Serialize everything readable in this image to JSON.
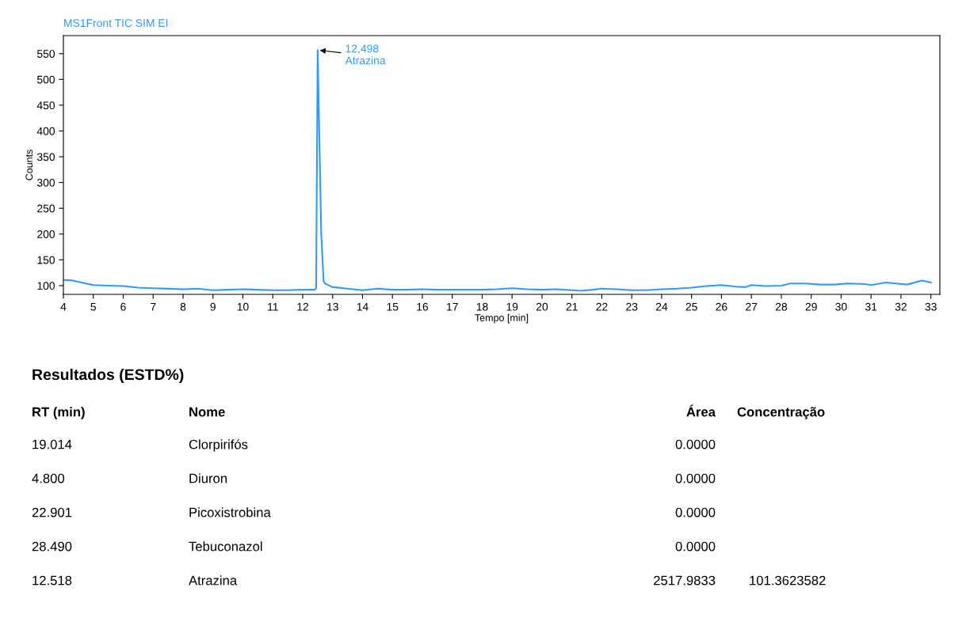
{
  "chart_data": [
    {
      "type": "line",
      "title": "MS1Front TIC SIM EI",
      "xlabel": "Tempo [min]",
      "ylabel": "Counts",
      "x": [
        4.0,
        4.3,
        4.6,
        5.0,
        5.5,
        6.0,
        6.5,
        7.0,
        7.5,
        8.0,
        8.5,
        9.0,
        9.5,
        10.0,
        10.5,
        11.0,
        11.5,
        12.0,
        12.4,
        12.45,
        12.5,
        12.62,
        12.7,
        12.75,
        13.0,
        13.5,
        14.0,
        14.5,
        15.0,
        15.5,
        16.0,
        16.5,
        17.0,
        17.5,
        18.0,
        18.5,
        19.0,
        19.5,
        20.0,
        20.5,
        21.0,
        21.3,
        21.7,
        22.0,
        22.5,
        23.0,
        23.5,
        24.0,
        24.5,
        25.0,
        25.5,
        26.0,
        26.5,
        26.8,
        27.0,
        27.5,
        28.0,
        28.3,
        28.8,
        29.3,
        29.8,
        30.2,
        30.8,
        31.0,
        31.5,
        32.2,
        32.7,
        33.0
      ],
      "series": [
        {
          "color": "#3399ff",
          "values": [
            111,
            110,
            106,
            101,
            100,
            99,
            96,
            95,
            94,
            93,
            94,
            91,
            92,
            93,
            92,
            91,
            91,
            92,
            92,
            95,
            557,
            200,
            108,
            104,
            97,
            94,
            91,
            94,
            92,
            92,
            93,
            92,
            92,
            92,
            92,
            93,
            95,
            93,
            92,
            93,
            91,
            90,
            92,
            94,
            93,
            91,
            91,
            93,
            94,
            96,
            99,
            101,
            98,
            97,
            101,
            99,
            100,
            104,
            104,
            102,
            102,
            104,
            103,
            101,
            106,
            102,
            110,
            106
          ]
        }
      ],
      "xlim": [
        4,
        33.3
      ],
      "xticks": [
        4,
        5,
        6,
        7,
        8,
        9,
        10,
        11,
        12,
        13,
        14,
        15,
        16,
        17,
        18,
        19,
        20,
        21,
        22,
        23,
        24,
        25,
        26,
        27,
        28,
        29,
        30,
        31,
        32,
        33
      ],
      "ylim": [
        83,
        585
      ],
      "yticks": [
        100,
        150,
        200,
        250,
        300,
        350,
        400,
        450,
        500,
        550
      ],
      "grid": false,
      "annotations": [
        {
          "text": "12,498\nAtrazina",
          "x": 12.5,
          "y": 557
        }
      ]
    },
    {
      "type": "other",
      "title": "Resultados (ESTD%)",
      "categories": [
        "RT (min)",
        "Nome",
        "Área",
        "Concentração"
      ],
      "cell_labels": [
        [
          "19.014",
          "Clorpirifós",
          "0.0000",
          null
        ],
        [
          "4.800",
          "Diuron",
          "0.0000",
          null
        ],
        [
          "22.901",
          "Picoxistrobina",
          "0.0000",
          null
        ],
        [
          "28.490",
          "Tebuconazol",
          "0.0000",
          null
        ],
        [
          "12.518",
          "Atrazina",
          "2517.9833",
          "101.3623582"
        ]
      ]
    }
  ]
}
